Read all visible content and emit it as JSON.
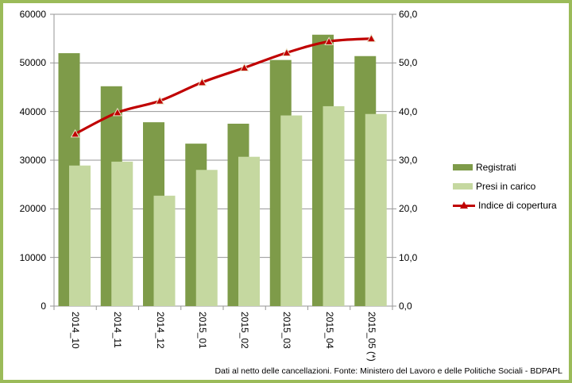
{
  "chart": {
    "footer": "Dati al netto delle cancellazioni. Fonte: Ministero del Lavoro e delle Politiche Sociali - BDPAPL",
    "colors": {
      "frame_border": "#9BBB59",
      "background": "#FFFFFF",
      "gridline": "#969696",
      "axis_line": "#969696",
      "bar_dark": "#7E9B49",
      "bar_light": "#C5D8A0",
      "line_red": "#C00000",
      "marker_outline": "#E8E4C8",
      "text": "#000000"
    }
  },
  "chart_data": {
    "type": "combo-bar-line",
    "title": "",
    "xlabel": "",
    "ylabel": "",
    "categories": [
      "2014_10",
      "2014_11",
      "2014_12",
      "2015_01",
      "2015_02",
      "2015_03",
      "2015_04",
      "2015_05 (*)"
    ],
    "series": [
      {
        "name": "Registrati",
        "type": "bar",
        "axis": "left",
        "color": "#7E9B49",
        "values": [
          52000,
          45200,
          37800,
          33400,
          37500,
          50600,
          55800,
          51400
        ]
      },
      {
        "name": "Presi in carico",
        "type": "bar",
        "axis": "left",
        "color": "#C5D8A0",
        "values": [
          28900,
          29700,
          22700,
          28000,
          30700,
          39200,
          41100,
          39500
        ]
      },
      {
        "name": "Indice di copertura",
        "type": "line",
        "axis": "right",
        "color": "#C00000",
        "values": [
          35.4,
          39.8,
          42.2,
          46.0,
          49.0,
          52.1,
          54.4,
          55.0
        ]
      }
    ],
    "left_axis": {
      "ylim": [
        0,
        60000
      ],
      "tick_labels": [
        "0",
        "10000",
        "20000",
        "30000",
        "40000",
        "50000",
        "60000"
      ]
    },
    "right_axis": {
      "ylim": [
        0,
        60
      ],
      "tick_labels": [
        "0,0",
        "10,0",
        "20,0",
        "30,0",
        "40,0",
        "50,0",
        "60,0"
      ]
    },
    "grid": true,
    "legend_position": "right"
  }
}
